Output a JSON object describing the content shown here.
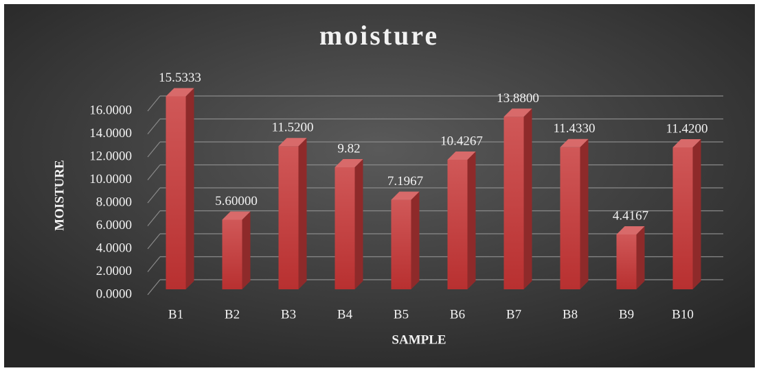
{
  "chart_data": {
    "type": "bar",
    "title": "moisture",
    "x_label": "SAMPLE",
    "y_label": "MOISTURE",
    "categories": [
      "B1",
      "B2",
      "B3",
      "B4",
      "B5",
      "B6",
      "B7",
      "B8",
      "B9",
      "B10"
    ],
    "values": [
      15.5333,
      5.6,
      11.52,
      9.82,
      7.1967,
      10.4267,
      13.88,
      11.433,
      4.4167,
      11.42
    ],
    "value_labels": [
      "15.5333",
      "5.60000",
      "11.5200",
      "9.82",
      "7.1967",
      "10.4267",
      "13.8800",
      "11.4330",
      "4.4167",
      "11.4200"
    ],
    "color": "#c94242",
    "ylim": [
      0,
      16
    ],
    "yticks": [
      {
        "value": 0,
        "label": "0.0000"
      },
      {
        "value": 2,
        "label": "2.0000"
      },
      {
        "value": 4,
        "label": "4.0000"
      },
      {
        "value": 6,
        "label": "6.0000"
      },
      {
        "value": 8,
        "label": "8.0000"
      },
      {
        "value": 10,
        "label": "10.0000"
      },
      {
        "value": 12,
        "label": "12.0000"
      },
      {
        "value": 14,
        "label": "14.0000"
      },
      {
        "value": 16,
        "label": "16.0000"
      }
    ],
    "grid": true
  }
}
